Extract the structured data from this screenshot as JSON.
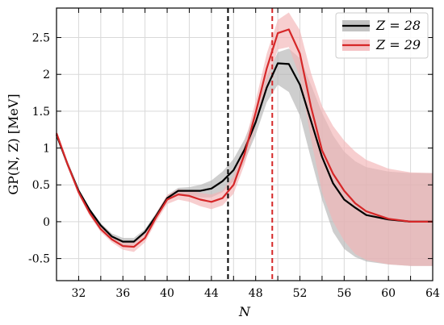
{
  "chart_data": {
    "type": "line",
    "xlabel": "N",
    "ylabel": "GP(N, Z) [MeV]",
    "xlim": [
      30,
      64
    ],
    "ylim": [
      -0.8,
      2.9
    ],
    "xticks": [
      32,
      34,
      36,
      38,
      40,
      42,
      44,
      46,
      48,
      50,
      52,
      54,
      56,
      58,
      60,
      62,
      64
    ],
    "xtick_labels": [
      "32",
      "36",
      "40",
      "44",
      "48",
      "52",
      "56",
      "60",
      "64"
    ],
    "yticks": [
      -0.5,
      0,
      0.5,
      1,
      1.5,
      2,
      2.5
    ],
    "ytick_labels": [
      "-0.5",
      "0",
      "0.5",
      "1",
      "1.5",
      "2",
      "2.5"
    ],
    "grid": true,
    "legend_position": "top-right",
    "vlines": [
      {
        "x": 45.5,
        "color": "#000000",
        "style": "dashed"
      },
      {
        "x": 49.5,
        "color": "#d62728",
        "style": "dashed"
      }
    ],
    "series": [
      {
        "name": "Z = 28",
        "color": "#000000",
        "band_color": "#b4b4b4",
        "x": [
          30,
          31,
          32,
          33,
          34,
          35,
          36,
          37,
          38,
          39,
          40,
          41,
          42,
          43,
          44,
          45,
          46,
          47,
          48,
          49,
          50,
          51,
          52,
          53,
          54,
          55,
          56,
          57,
          58,
          60,
          62,
          64
        ],
        "y": [
          1.18,
          0.78,
          0.42,
          0.16,
          -0.05,
          -0.2,
          -0.27,
          -0.27,
          -0.14,
          0.08,
          0.32,
          0.42,
          0.42,
          0.42,
          0.45,
          0.55,
          0.7,
          0.98,
          1.35,
          1.82,
          2.15,
          2.14,
          1.86,
          1.37,
          0.88,
          0.52,
          0.3,
          0.19,
          0.09,
          0.03,
          0.0,
          0.0
        ],
        "band_upper": [
          1.22,
          0.82,
          0.45,
          0.18,
          -0.02,
          -0.16,
          -0.22,
          -0.22,
          -0.1,
          0.12,
          0.36,
          0.46,
          0.47,
          0.5,
          0.56,
          0.68,
          0.85,
          1.12,
          1.5,
          1.98,
          2.3,
          2.35,
          2.22,
          1.86,
          1.48,
          1.17,
          0.95,
          0.82,
          0.74,
          0.68,
          0.66,
          0.66
        ],
        "band_lower": [
          1.14,
          0.74,
          0.38,
          0.13,
          -0.08,
          -0.24,
          -0.32,
          -0.31,
          -0.18,
          0.04,
          0.28,
          0.38,
          0.36,
          0.33,
          0.33,
          0.4,
          0.55,
          0.82,
          1.18,
          1.62,
          1.86,
          1.76,
          1.44,
          0.86,
          0.3,
          -0.14,
          -0.37,
          -0.48,
          -0.54,
          -0.58,
          -0.6,
          -0.6
        ]
      },
      {
        "name": "Z = 29",
        "color": "#d62728",
        "band_color": "#f2b3b6",
        "x": [
          30,
          31,
          32,
          33,
          34,
          35,
          36,
          37,
          38,
          39,
          40,
          41,
          42,
          43,
          44,
          45,
          46,
          47,
          48,
          49,
          50,
          51,
          52,
          53,
          54,
          55,
          56,
          57,
          58,
          60,
          62,
          64
        ],
        "y": [
          1.2,
          0.78,
          0.4,
          0.12,
          -0.1,
          -0.24,
          -0.33,
          -0.34,
          -0.22,
          0.06,
          0.3,
          0.37,
          0.35,
          0.3,
          0.27,
          0.32,
          0.5,
          0.92,
          1.48,
          2.08,
          2.56,
          2.61,
          2.28,
          1.56,
          0.97,
          0.65,
          0.42,
          0.25,
          0.14,
          0.04,
          0.0,
          0.0
        ],
        "band_upper": [
          1.24,
          0.82,
          0.44,
          0.16,
          -0.06,
          -0.2,
          -0.28,
          -0.28,
          -0.16,
          0.12,
          0.36,
          0.44,
          0.43,
          0.39,
          0.37,
          0.42,
          0.62,
          1.05,
          1.64,
          2.28,
          2.74,
          2.84,
          2.6,
          2.02,
          1.57,
          1.3,
          1.1,
          0.95,
          0.84,
          0.72,
          0.67,
          0.66
        ],
        "band_lower": [
          1.16,
          0.74,
          0.36,
          0.08,
          -0.14,
          -0.28,
          -0.38,
          -0.41,
          -0.28,
          0.0,
          0.24,
          0.3,
          0.27,
          0.21,
          0.17,
          0.22,
          0.38,
          0.78,
          1.3,
          1.86,
          2.34,
          2.37,
          1.96,
          1.12,
          0.4,
          0.0,
          -0.26,
          -0.44,
          -0.52,
          -0.58,
          -0.6,
          -0.6
        ]
      }
    ]
  }
}
